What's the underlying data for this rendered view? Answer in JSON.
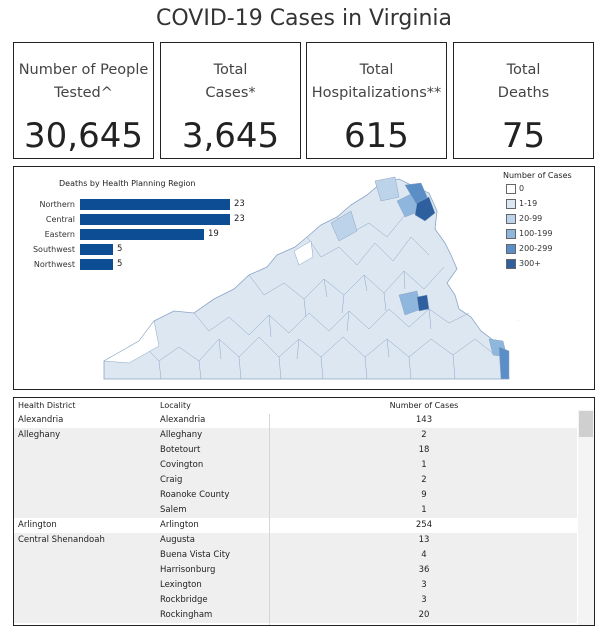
{
  "title": "COVID-19 Cases in Virginia",
  "kpis": [
    {
      "label": "Number of People\nTested^",
      "value": "30,645"
    },
    {
      "label": "Total\nCases*",
      "value": "3,645"
    },
    {
      "label": "Total\nHospitalizations**",
      "value": "615"
    },
    {
      "label": "Total\nDeaths",
      "value": "75"
    }
  ],
  "chart_data": {
    "type": "bar",
    "title": "Deaths by Health Planning Region",
    "categories": [
      "Northern",
      "Central",
      "Eastern",
      "Southwest",
      "Northwest"
    ],
    "values": [
      23,
      23,
      19,
      5,
      5
    ]
  },
  "legend": {
    "title": "Number of Cases",
    "items": [
      {
        "label": "0",
        "color": "#ffffff"
      },
      {
        "label": "1-19",
        "color": "#dde7f2"
      },
      {
        "label": "20-99",
        "color": "#bcd3ea"
      },
      {
        "label": "100-199",
        "color": "#8fb6dd"
      },
      {
        "label": "200-299",
        "color": "#5b8ec6"
      },
      {
        "label": "300+",
        "color": "#2e5f9e"
      }
    ]
  },
  "table": {
    "headers": [
      "Health District",
      "Locality",
      "Number of Cases"
    ],
    "rows": [
      {
        "district": "Alexandria",
        "locality": "Alexandria",
        "cases": "143"
      },
      {
        "district": "Alleghany",
        "locality": "Alleghany",
        "cases": "2"
      },
      {
        "district": "",
        "locality": "Botetourt",
        "cases": "18"
      },
      {
        "district": "",
        "locality": "Covington",
        "cases": "1"
      },
      {
        "district": "",
        "locality": "Craig",
        "cases": "2"
      },
      {
        "district": "",
        "locality": "Roanoke County",
        "cases": "9"
      },
      {
        "district": "",
        "locality": "Salem",
        "cases": "1"
      },
      {
        "district": "Arlington",
        "locality": "Arlington",
        "cases": "254"
      },
      {
        "district": "Central Shenandoah",
        "locality": "Augusta",
        "cases": "13"
      },
      {
        "district": "",
        "locality": "Buena Vista City",
        "cases": "4"
      },
      {
        "district": "",
        "locality": "Harrisonburg",
        "cases": "36"
      },
      {
        "district": "",
        "locality": "Lexington",
        "cases": "3"
      },
      {
        "district": "",
        "locality": "Rockbridge",
        "cases": "3"
      },
      {
        "district": "",
        "locality": "Rockingham",
        "cases": "20"
      }
    ]
  }
}
